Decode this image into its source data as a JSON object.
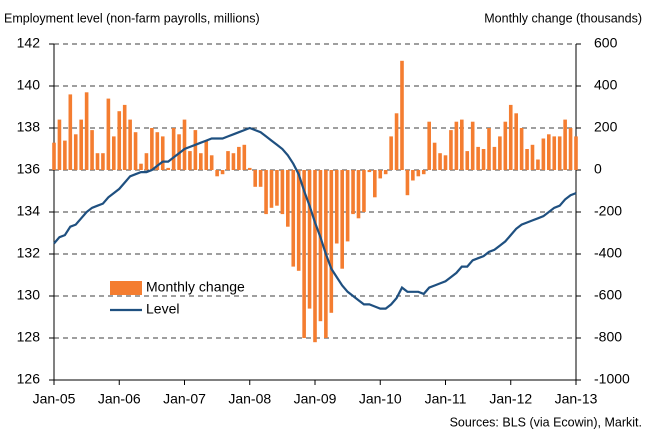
{
  "chart_data": {
    "type": "bar_line",
    "y_axis_label": "Employment level (non-farm payrolls, millions)",
    "y2_axis_label": "Monthly change (thousands)",
    "source": "Sources: BLS (via Ecowin), Markit.",
    "categories": [
      "Jan-05",
      null,
      null,
      null,
      null,
      null,
      null,
      null,
      null,
      null,
      null,
      null,
      "Jan-06",
      null,
      null,
      null,
      null,
      null,
      null,
      null,
      null,
      null,
      null,
      null,
      "Jan-07",
      null,
      null,
      null,
      null,
      null,
      null,
      null,
      null,
      null,
      null,
      null,
      "Jan-08",
      null,
      null,
      null,
      null,
      null,
      null,
      null,
      null,
      null,
      null,
      null,
      "Jan-09",
      null,
      null,
      null,
      null,
      null,
      null,
      null,
      null,
      null,
      null,
      null,
      "Jan-10",
      null,
      null,
      null,
      null,
      null,
      null,
      null,
      null,
      null,
      null,
      null,
      "Jan-11",
      null,
      null,
      null,
      null,
      null,
      null,
      null,
      null,
      null,
      null,
      null,
      "Jan-12",
      null,
      null,
      null,
      null,
      null,
      null,
      null,
      null,
      null,
      null,
      null,
      "Jan-13"
    ],
    "series": [
      {
        "name": "Monthly change",
        "type": "bar",
        "axis": "y2",
        "color": "#f47d30",
        "values": [
          130,
          240,
          140,
          360,
          170,
          240,
          370,
          190,
          80,
          80,
          340,
          160,
          280,
          310,
          240,
          180,
          30,
          80,
          200,
          180,
          160,
          10,
          200,
          170,
          240,
          90,
          190,
          80,
          140,
          70,
          -30,
          -20,
          90,
          80,
          110,
          120,
          10,
          -80,
          -80,
          -210,
          -180,
          -170,
          -210,
          -270,
          -460,
          -480,
          -800,
          -660,
          -820,
          -720,
          -800,
          -680,
          -350,
          -470,
          -340,
          -210,
          -230,
          -200,
          -10,
          -130,
          -40,
          -20,
          160,
          270,
          520,
          -120,
          -50,
          -30,
          -20,
          230,
          130,
          80,
          70,
          190,
          230,
          240,
          90,
          230,
          110,
          100,
          200,
          110,
          160,
          230,
          310,
          270,
          200,
          100,
          120,
          50,
          150,
          170,
          160,
          160,
          240,
          200,
          160
        ]
      },
      {
        "name": "Level",
        "type": "line",
        "axis": "y",
        "color": "#1f5080",
        "values": [
          132.5,
          132.8,
          132.9,
          133.3,
          133.4,
          133.7,
          134.0,
          134.2,
          134.3,
          134.4,
          134.7,
          134.9,
          135.1,
          135.4,
          135.7,
          135.8,
          135.9,
          135.9,
          136.0,
          136.2,
          136.4,
          136.4,
          136.6,
          136.8,
          137.0,
          137.1,
          137.2,
          137.3,
          137.4,
          137.5,
          137.5,
          137.5,
          137.6,
          137.7,
          137.8,
          137.9,
          138.0,
          137.9,
          137.8,
          137.6,
          137.4,
          137.2,
          137.0,
          136.7,
          136.3,
          135.8,
          135.0,
          134.3,
          133.5,
          132.8,
          132.0,
          131.3,
          130.9,
          130.5,
          130.2,
          130.0,
          129.8,
          129.6,
          129.6,
          129.5,
          129.4,
          129.4,
          129.6,
          129.9,
          130.4,
          130.2,
          130.2,
          130.2,
          130.1,
          130.4,
          130.5,
          130.6,
          130.7,
          130.9,
          131.1,
          131.4,
          131.4,
          131.7,
          131.8,
          131.9,
          132.1,
          132.2,
          132.4,
          132.6,
          132.9,
          133.2,
          133.4,
          133.5,
          133.6,
          133.7,
          133.8,
          134.0,
          134.2,
          134.3,
          134.6,
          134.8,
          134.9
        ]
      }
    ],
    "ylim": [
      126,
      142
    ],
    "yticks": [
      126,
      128,
      130,
      132,
      134,
      136,
      138,
      140,
      142
    ],
    "y2lim": [
      -1000,
      600
    ],
    "y2ticks": [
      -1000,
      -800,
      -600,
      -400,
      -200,
      0,
      200,
      400,
      600
    ],
    "grid": true,
    "legend": "lower-left"
  }
}
